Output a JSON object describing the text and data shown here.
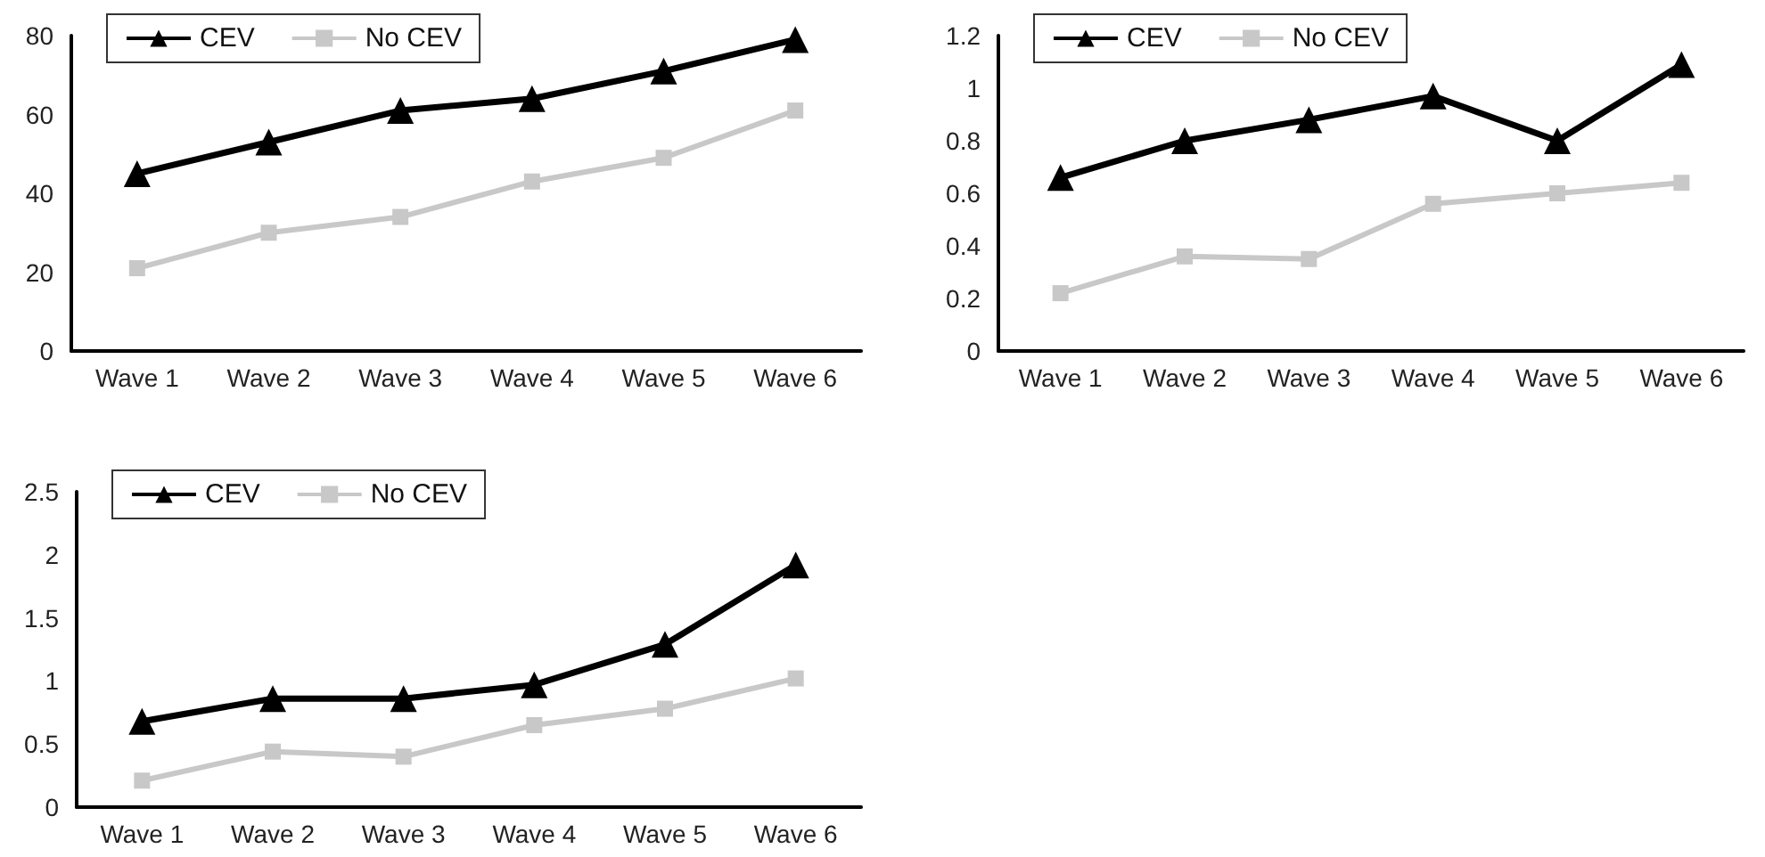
{
  "chart_data": [
    {
      "type": "line",
      "categories": [
        "Wave 1",
        "Wave 2",
        "Wave 3",
        "Wave 4",
        "Wave 5",
        "Wave 6"
      ],
      "ylim": [
        0,
        80
      ],
      "yticks": [
        0,
        20,
        40,
        60,
        80
      ],
      "grid": false,
      "legend": "top left",
      "series": [
        {
          "name": "CEV",
          "color": "#000000",
          "marker": "triangle",
          "values": [
            45,
            53,
            61,
            64,
            71,
            79
          ]
        },
        {
          "name": "No CEV",
          "color": "#c8c8c8",
          "marker": "square",
          "values": [
            21,
            30,
            34,
            43,
            49,
            61
          ]
        }
      ]
    },
    {
      "type": "line",
      "categories": [
        "Wave 1",
        "Wave 2",
        "Wave 3",
        "Wave 4",
        "Wave 5",
        "Wave 6"
      ],
      "ylim": [
        0,
        1.2
      ],
      "yticks": [
        0,
        0.2,
        0.4,
        0.6,
        0.8,
        1,
        1.2
      ],
      "grid": false,
      "legend": "top left",
      "series": [
        {
          "name": "CEV",
          "color": "#000000",
          "marker": "triangle",
          "values": [
            0.66,
            0.8,
            0.88,
            0.97,
            0.8,
            1.09
          ]
        },
        {
          "name": "No CEV",
          "color": "#c8c8c8",
          "marker": "square",
          "values": [
            0.22,
            0.36,
            0.35,
            0.56,
            0.6,
            0.64
          ]
        }
      ]
    },
    {
      "type": "line",
      "categories": [
        "Wave 1",
        "Wave 2",
        "Wave 3",
        "Wave 4",
        "Wave 5",
        "Wave 6"
      ],
      "ylim": [
        0,
        2.5
      ],
      "yticks": [
        0,
        0.5,
        1,
        1.5,
        2,
        2.5
      ],
      "grid": false,
      "legend": "top left",
      "series": [
        {
          "name": "CEV",
          "color": "#000000",
          "marker": "triangle",
          "values": [
            0.68,
            0.86,
            0.86,
            0.97,
            1.29,
            1.92
          ]
        },
        {
          "name": "No CEV",
          "color": "#c8c8c8",
          "marker": "square",
          "values": [
            0.21,
            0.44,
            0.4,
            0.65,
            0.78,
            1.02
          ]
        }
      ]
    }
  ]
}
